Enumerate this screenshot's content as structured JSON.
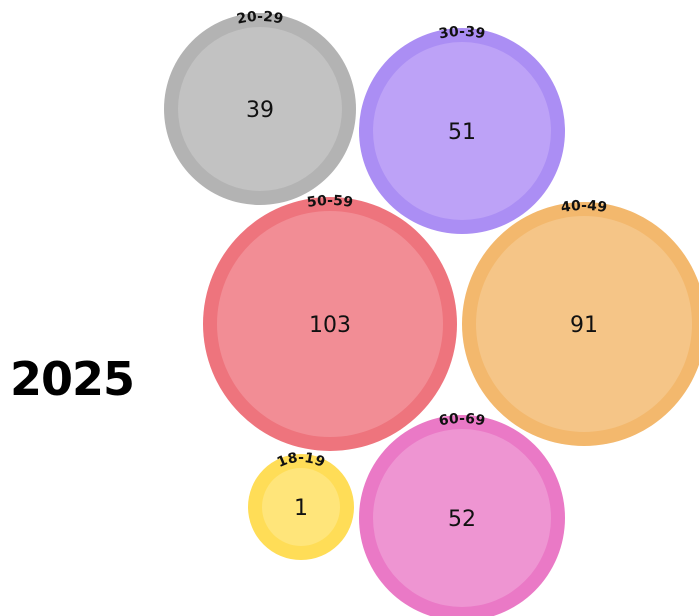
{
  "year": "2025",
  "chart_data": {
    "type": "bubble",
    "title": "2025",
    "series": [
      {
        "category": "20-29",
        "value": 39,
        "color": "#c2c2c2",
        "ring": "#b3b3b3"
      },
      {
        "category": "30-39",
        "value": 51,
        "color": "#bda2f7",
        "ring": "#ab8ef4"
      },
      {
        "category": "50-59",
        "value": 103,
        "color": "#f28d95",
        "ring": "#ee747d"
      },
      {
        "category": "40-49",
        "value": 91,
        "color": "#f5c587",
        "ring": "#f3b86d"
      },
      {
        "category": "18-19",
        "value": 1,
        "color": "#ffe57a",
        "ring": "#ffdd57"
      },
      {
        "category": "60-69",
        "value": 52,
        "color": "#ee95d2",
        "ring": "#ea79c6"
      }
    ]
  }
}
